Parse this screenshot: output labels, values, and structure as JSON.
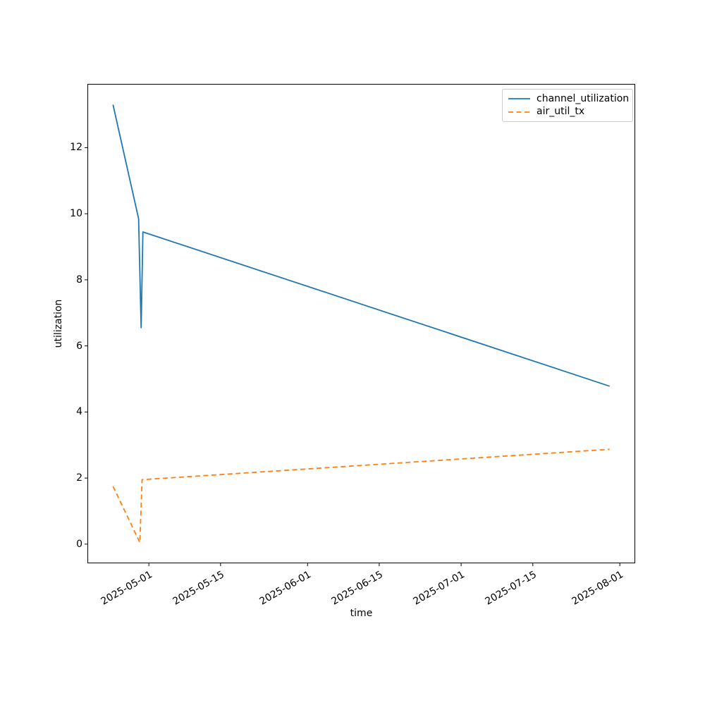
{
  "figure": {
    "background": "#ffffff"
  },
  "chart_data": {
    "type": "line",
    "title": "",
    "xlabel": "time",
    "ylabel": "utilization",
    "grid": false,
    "x_range": [
      "2025-04-19T00:00:00Z",
      "2025-08-04T00:00:00Z"
    ],
    "y_range": [
      -0.58,
      13.93
    ],
    "x_ticks": [
      {
        "value": "2025-05-01T00:00:00Z",
        "label": "2025-05-01"
      },
      {
        "value": "2025-05-15T00:00:00Z",
        "label": "2025-05-15"
      },
      {
        "value": "2025-06-01T00:00:00Z",
        "label": "2025-06-01"
      },
      {
        "value": "2025-06-15T00:00:00Z",
        "label": "2025-06-15"
      },
      {
        "value": "2025-07-01T00:00:00Z",
        "label": "2025-07-01"
      },
      {
        "value": "2025-07-15T00:00:00Z",
        "label": "2025-07-15"
      },
      {
        "value": "2025-08-01T00:00:00Z",
        "label": "2025-08-01"
      }
    ],
    "y_ticks": [
      {
        "value": 0,
        "label": "0"
      },
      {
        "value": 2,
        "label": "2"
      },
      {
        "value": 4,
        "label": "4"
      },
      {
        "value": 6,
        "label": "6"
      },
      {
        "value": 8,
        "label": "8"
      },
      {
        "value": 10,
        "label": "10"
      },
      {
        "value": 12,
        "label": "12"
      }
    ],
    "legend": {
      "position": "upper right",
      "border_color": "#cccccc",
      "background": "#ffffff"
    },
    "series": [
      {
        "name": "channel_utilization",
        "color": "#1f77b4",
        "line_style": "solid",
        "points": [
          [
            "2025-04-24T00:00:00Z",
            13.3
          ],
          [
            "2025-04-29T00:00:00Z",
            9.85
          ],
          [
            "2025-04-29T12:00:00Z",
            6.55
          ],
          [
            "2025-04-29T20:00:00Z",
            9.45
          ],
          [
            "2025-07-30T00:00:00Z",
            4.78
          ]
        ]
      },
      {
        "name": "air_util_tx",
        "color": "#ff7f0e",
        "line_style": "dashed",
        "points": [
          [
            "2025-04-24T00:00:00Z",
            1.75
          ],
          [
            "2025-04-29T06:00:00Z",
            0.05
          ],
          [
            "2025-04-29T16:00:00Z",
            1.95
          ],
          [
            "2025-07-30T00:00:00Z",
            2.87
          ]
        ]
      }
    ]
  }
}
